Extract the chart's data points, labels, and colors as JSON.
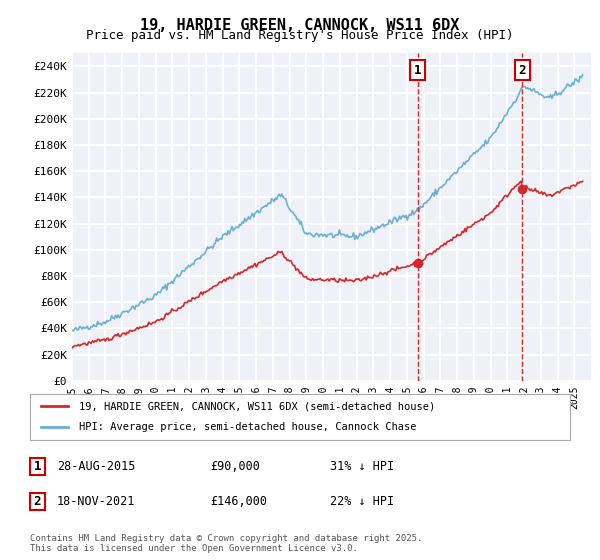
{
  "title": "19, HARDIE GREEN, CANNOCK, WS11 6DX",
  "subtitle": "Price paid vs. HM Land Registry's House Price Index (HPI)",
  "ylabel_ticks": [
    "£0",
    "£20K",
    "£40K",
    "£60K",
    "£80K",
    "£100K",
    "£120K",
    "£140K",
    "£160K",
    "£180K",
    "£200K",
    "£220K",
    "£240K"
  ],
  "ytick_values": [
    0,
    20000,
    40000,
    60000,
    80000,
    100000,
    120000,
    140000,
    160000,
    180000,
    200000,
    220000,
    240000
  ],
  "ylim": [
    0,
    250000
  ],
  "hpi_color": "#6baed6",
  "price_color": "#d62728",
  "sale1_date_x": 2015.66,
  "sale1_price": 90000,
  "sale1_label": "1",
  "sale2_date_x": 2021.88,
  "sale2_price": 146000,
  "sale2_label": "2",
  "vline_color": "#d62728",
  "legend_label_price": "19, HARDIE GREEN, CANNOCK, WS11 6DX (semi-detached house)",
  "legend_label_hpi": "HPI: Average price, semi-detached house, Cannock Chase",
  "table_row1": [
    "1",
    "28-AUG-2015",
    "£90,000",
    "31% ↓ HPI"
  ],
  "table_row2": [
    "2",
    "18-NOV-2021",
    "£146,000",
    "22% ↓ HPI"
  ],
  "footer": "Contains HM Land Registry data © Crown copyright and database right 2025.\nThis data is licensed under the Open Government Licence v3.0.",
  "background_color": "#eef2f8",
  "grid_color": "#ffffff",
  "xmin": 1995,
  "xmax": 2026,
  "hpi_anchors_t": [
    1995.0,
    1997.0,
    2000.0,
    2004.0,
    2007.5,
    2009.0,
    2012.0,
    2015.66,
    2018.0,
    2020.0,
    2022.0,
    2023.5,
    2025.5
  ],
  "hpi_anchors_v": [
    38000,
    45000,
    65000,
    110000,
    142000,
    112000,
    110000,
    130000,
    160000,
    185000,
    225000,
    215000,
    232000
  ]
}
